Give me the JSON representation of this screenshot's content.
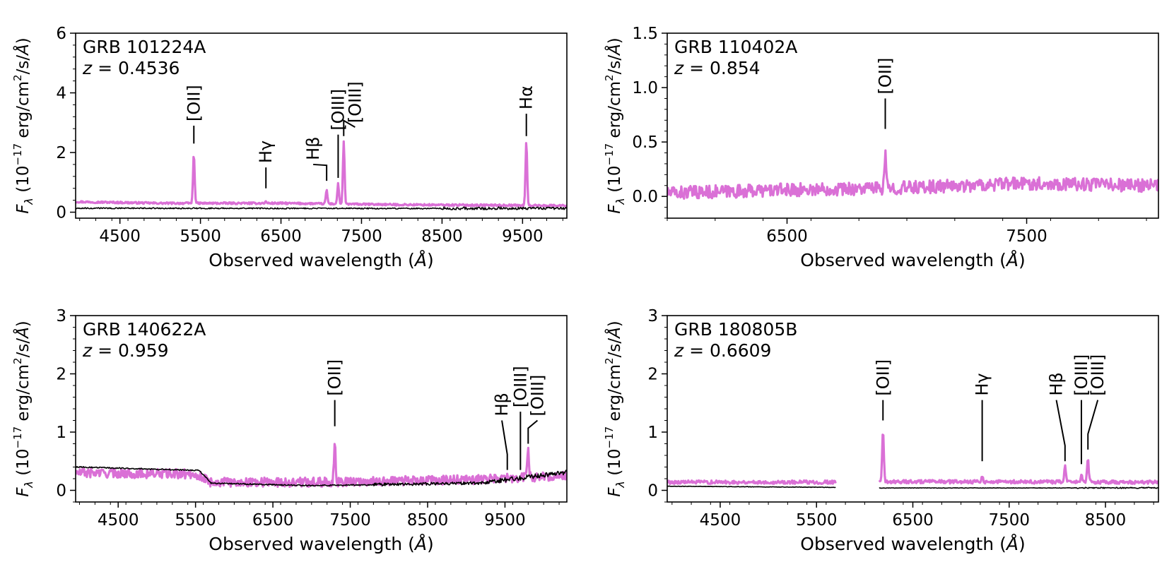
{
  "chart_data": [
    {
      "type": "line",
      "title": "GRB 101224A",
      "redshift": "z = 0.4536",
      "xlabel": "Observed wavelength (Å)",
      "ylabel": "F_λ (10^-17 erg/cm^2/s/Å)",
      "xlim": [
        3950,
        10050
      ],
      "ylim": [
        -0.2,
        6
      ],
      "xticks": [
        4500,
        5500,
        6500,
        7500,
        8500,
        9500
      ],
      "yticks": [
        0,
        2,
        4,
        6
      ],
      "spectrum": {
        "continuum": [
          [
            3950,
            0.35
          ],
          [
            5000,
            0.3
          ],
          [
            6500,
            0.3
          ],
          [
            8000,
            0.25
          ],
          [
            10050,
            0.22
          ]
        ],
        "noise": 0.03,
        "lines": [
          {
            "x": 5418,
            "peak": 1.95
          },
          {
            "x": 6313,
            "peak": 0.35
          },
          {
            "x": 7067,
            "peak": 0.75
          },
          {
            "x": 7210,
            "peak": 0.95
          },
          {
            "x": 7279,
            "peak": 2.35
          },
          {
            "x": 9547,
            "peak": 2.35
          }
        ]
      },
      "error": {
        "continuum": [
          [
            3950,
            0.13
          ],
          [
            8500,
            0.12
          ],
          [
            10050,
            0.12
          ]
        ],
        "noise": 0.04,
        "noisy_from": 8500,
        "red_noise": 0.08,
        "red_from": 9300
      },
      "annotations": [
        {
          "label": "[OII]",
          "x": 5418,
          "tip": 2.3,
          "top": 2.9
        },
        {
          "label": "Hγ",
          "x": 6313,
          "tip": 0.8,
          "top": 1.5
        },
        {
          "label": "Hβ",
          "x": 7067,
          "tip": 1.05,
          "top": 1.6,
          "kink": 6900
        },
        {
          "label": "[OIII]",
          "x": 7210,
          "tip": 1.15,
          "top": 2.6
        },
        {
          "label": "[OIII]",
          "x": 7279,
          "tip": 2.55,
          "top": 2.85,
          "kink": 7420
        },
        {
          "label": "Hα",
          "x": 9547,
          "tip": 2.55,
          "top": 3.3
        }
      ]
    },
    {
      "type": "line",
      "title": "GRB 110402A",
      "redshift": "z = 0.854",
      "xlabel": "Observed wavelength (Å)",
      "ylabel": "F_λ (10^-17 erg/cm^2/s/Å)",
      "xlim": [
        6000,
        8050
      ],
      "ylim": [
        -0.2,
        1.5
      ],
      "xticks": [
        6500,
        7500
      ],
      "yticks": [
        0.0,
        0.5,
        1.0,
        1.5
      ],
      "spectrum": {
        "continuum": [
          [
            6000,
            0.03
          ],
          [
            6500,
            0.06
          ],
          [
            7000,
            0.08
          ],
          [
            7500,
            0.12
          ],
          [
            8050,
            0.1
          ]
        ],
        "noise": 0.06,
        "lines": [
          {
            "x": 6910,
            "peak": 0.38
          }
        ]
      },
      "annotations": [
        {
          "label": "[OII]",
          "x": 6910,
          "tip": 0.62,
          "top": 0.9
        }
      ]
    },
    {
      "type": "line",
      "title": "GRB 140622A",
      "redshift": "z = 0.959",
      "xlabel": "Observed wavelength (Å)",
      "ylabel": "F_λ (10^-17 erg/cm^2/s/Å)",
      "xlim": [
        3950,
        10300
      ],
      "ylim": [
        -0.2,
        3
      ],
      "xticks": [
        4500,
        5500,
        6500,
        7500,
        8500,
        9500
      ],
      "yticks": [
        0,
        1,
        2,
        3
      ],
      "spectrum": {
        "continuum": [
          [
            3950,
            0.3
          ],
          [
            5500,
            0.28
          ],
          [
            5700,
            0.14
          ],
          [
            7000,
            0.14
          ],
          [
            9000,
            0.18
          ],
          [
            10300,
            0.25
          ]
        ],
        "noise": 0.08,
        "lines": [
          {
            "x": 7300,
            "peak": 0.85
          },
          {
            "x": 9800,
            "peak": 0.72
          }
        ]
      },
      "error": {
        "continuum": [
          [
            3950,
            0.4
          ],
          [
            5550,
            0.34
          ],
          [
            5700,
            0.12
          ],
          [
            7000,
            0.08
          ],
          [
            9200,
            0.12
          ],
          [
            10300,
            0.3
          ]
        ],
        "noise": 0.02,
        "noisy_from": 7800,
        "red_noise": 0.08,
        "red_from": 9300
      },
      "annotations": [
        {
          "label": "[OII]",
          "x": 7300,
          "tip": 1.1,
          "top": 1.55
        },
        {
          "label": "Hβ",
          "x": 9530,
          "tip": 0.35,
          "top": 1.2,
          "kink": 9460
        },
        {
          "label": "[OIII]",
          "x": 9700,
          "tip": 0.35,
          "top": 1.35
        },
        {
          "label": "[OIII]",
          "x": 9800,
          "tip": 0.8,
          "top": 1.2,
          "kink": 9920
        }
      ]
    },
    {
      "type": "line",
      "title": "GRB 180805B",
      "redshift": "z = 0.6609",
      "xlabel": "Observed wavelength (Å)",
      "ylabel": "F_λ (10^-17 erg/cm^2/s/Å)",
      "xlim": [
        3950,
        9050
      ],
      "ylim": [
        -0.2,
        3
      ],
      "xticks": [
        4500,
        5500,
        6500,
        7500,
        8500
      ],
      "yticks": [
        0,
        1,
        2,
        3
      ],
      "gap": [
        5700,
        6150
      ],
      "spectrum": {
        "continuum": [
          [
            3950,
            0.14
          ],
          [
            5700,
            0.14
          ],
          [
            6150,
            0.15
          ],
          [
            9050,
            0.14
          ]
        ],
        "noise": 0.03,
        "lines": [
          {
            "x": 6190,
            "peak": 1.02
          },
          {
            "x": 7220,
            "peak": 0.25
          },
          {
            "x": 8080,
            "peak": 0.42
          },
          {
            "x": 8250,
            "peak": 0.28
          },
          {
            "x": 8318,
            "peak": 0.55
          }
        ]
      },
      "error": {
        "continuum": [
          [
            3950,
            0.07
          ],
          [
            5700,
            0.05
          ],
          [
            6150,
            0.04
          ],
          [
            9050,
            0.04
          ]
        ],
        "noise": 0.008,
        "noisy_from": 8200,
        "red_noise": 0.02,
        "red_from": 8200
      },
      "annotations": [
        {
          "label": "[OII]",
          "x": 6190,
          "tip": 1.2,
          "top": 1.55
        },
        {
          "label": "Hγ",
          "x": 7220,
          "tip": 0.5,
          "top": 1.55
        },
        {
          "label": "Hβ",
          "x": 8080,
          "tip": 0.5,
          "top": 1.55,
          "kink": 7990
        },
        {
          "label": "[OIII]",
          "x": 8250,
          "tip": 0.45,
          "top": 1.55
        },
        {
          "label": "[OIII]",
          "x": 8318,
          "tip": 0.7,
          "top": 1.55,
          "kink": 8420
        }
      ]
    }
  ],
  "colors": {
    "spectrum": "#da70d6",
    "error": "#000000",
    "axes": "#000000"
  }
}
